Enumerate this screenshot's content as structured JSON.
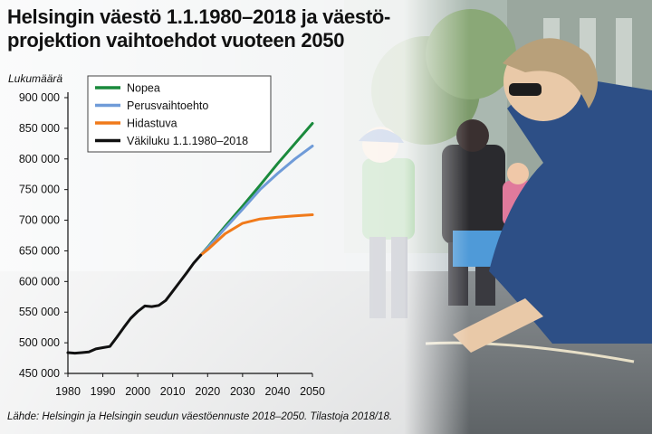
{
  "title": {
    "line1": "Helsingin väestö 1.1.1980–2018 ja väestö-",
    "line2": "projektion vaihtoehdot vuoteen 2050"
  },
  "source": "Lähde: Helsingin ja Helsingin seudun väestöennuste 2018–2050. Tilastoja 2018/18.",
  "chart_data": {
    "type": "line",
    "title": "Helsingin väestö 1.1.1980–2018 ja väestöprojektion vaihtoehdot vuoteen 2050",
    "xlabel": "",
    "ylabel": "Lukumäärä",
    "xlim": [
      1980,
      2050
    ],
    "ylim": [
      450000,
      900000
    ],
    "x_ticks": [
      1980,
      1990,
      2000,
      2010,
      2020,
      2030,
      2040,
      2050
    ],
    "x_tick_labels": [
      "1980",
      "1990",
      "2000",
      "2010",
      "2020",
      "2030",
      "2040",
      "2050"
    ],
    "y_ticks": [
      450000,
      500000,
      550000,
      600000,
      650000,
      700000,
      750000,
      800000,
      850000,
      900000
    ],
    "y_tick_labels": [
      "450 000",
      "500 000",
      "550 000",
      "600 000",
      "650 000",
      "700 000",
      "750 000",
      "800 000",
      "850 000",
      "900 000"
    ],
    "grid": false,
    "legend_position": "top",
    "series": [
      {
        "name": "Nopea",
        "color": "#1a8a3c",
        "x": [
          2018,
          2020,
          2025,
          2030,
          2035,
          2040,
          2045,
          2050
        ],
        "y": [
          643000,
          656000,
          690000,
          723000,
          757000,
          792000,
          825000,
          858000
        ]
      },
      {
        "name": "Perusvaihtoehto",
        "color": "#6f9bd8",
        "x": [
          2018,
          2020,
          2025,
          2030,
          2035,
          2040,
          2045,
          2050
        ],
        "y": [
          643000,
          655000,
          687000,
          718000,
          750000,
          776000,
          800000,
          821000
        ]
      },
      {
        "name": "Hidastuva",
        "color": "#f07a1a",
        "x": [
          2018,
          2020,
          2025,
          2030,
          2035,
          2040,
          2045,
          2050
        ],
        "y": [
          643000,
          652000,
          678000,
          695000,
          702000,
          705000,
          707000,
          709000
        ]
      },
      {
        "name": "Väkiluku 1.1.1980–2018",
        "color": "#111111",
        "x": [
          1980,
          1982,
          1984,
          1986,
          1988,
          1990,
          1992,
          1994,
          1996,
          1998,
          2000,
          2002,
          2004,
          2006,
          2008,
          2010,
          2012,
          2014,
          2016,
          2018
        ],
        "y": [
          484000,
          483000,
          484000,
          485000,
          490000,
          492000,
          494000,
          509000,
          525000,
          540000,
          551000,
          560000,
          559000,
          561000,
          569000,
          584000,
          599000,
          614000,
          630000,
          643000
        ]
      }
    ]
  }
}
